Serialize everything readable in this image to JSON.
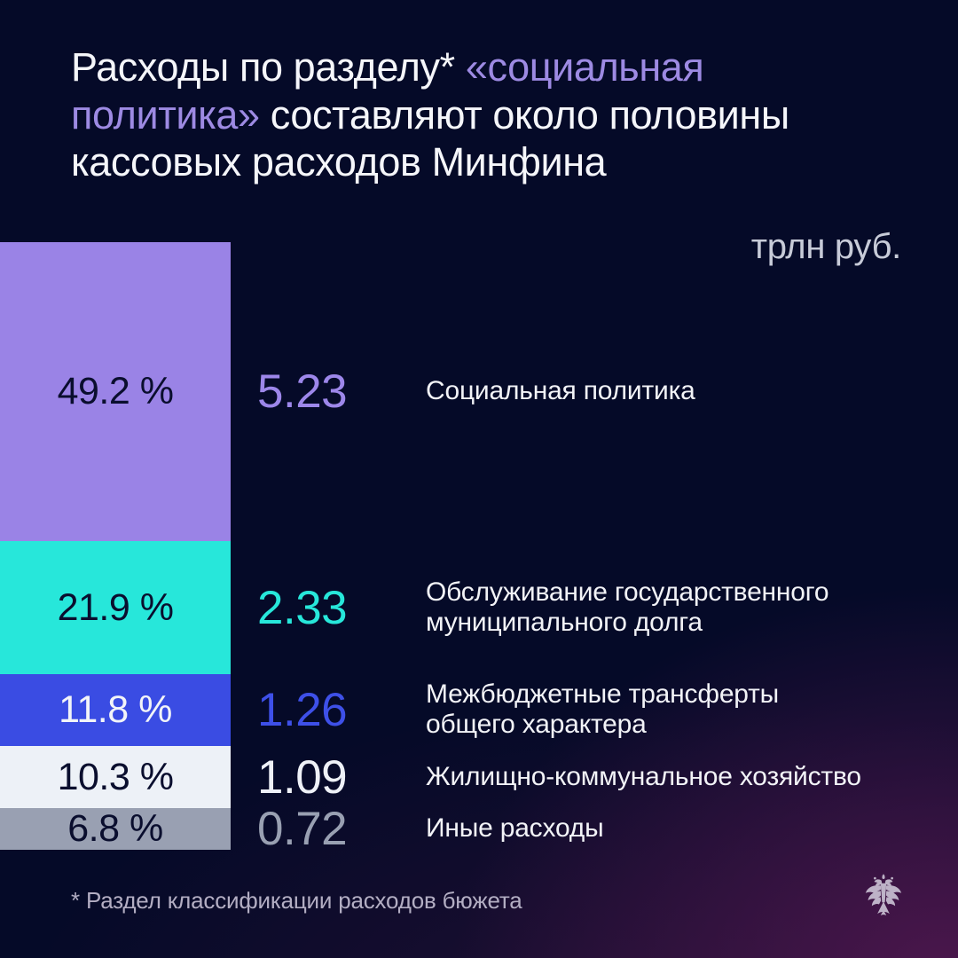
{
  "title": {
    "part1": "Расходы по разделу* ",
    "accent": "«социальная политика»",
    "part2": " составляют около половины кассовых расходов Минфина"
  },
  "unit_label": "трлн руб.",
  "footnote": "* Раздел классификации расходов бюжета",
  "logo": {
    "name": "minfin-double-headed-eagle",
    "color": "#d4cede"
  },
  "colors": {
    "background_top": "#050a28",
    "background_glow_bottom_right": "#3a1438",
    "title_text": "#f5f6fa",
    "title_accent": "#9d8ae3",
    "unit_text": "#c7cbd8",
    "footnote_text": "#b3aec3"
  },
  "chart_data": {
    "type": "bar",
    "subtype": "vertical-stacked-100-percent",
    "title": "Расходы по разделу «социальная политика» составляют около половины кассовых расходов Минфина",
    "unit": "трлн руб.",
    "legend_position": "right-of-bar",
    "grid": false,
    "items": [
      {
        "label": "Социальная политика",
        "percent": 49.2,
        "percent_label": "49.2 %",
        "value": "5.23",
        "color": "#9a83e6",
        "value_color": "#9d87ea",
        "percent_text_color": "#0a0e2e"
      },
      {
        "label": "Обслуживание государственного\nмуниципального долга",
        "percent": 21.9,
        "percent_label": "21.9 %",
        "value": "2.33",
        "color": "#27e7da",
        "value_color": "#27e7da",
        "percent_text_color": "#0a0e2e"
      },
      {
        "label": "Межбюджетные трансферты\nобщего характера",
        "percent": 11.8,
        "percent_label": "11.8 %",
        "value": "1.26",
        "color": "#3a4ce3",
        "value_color": "#3e50e8",
        "percent_text_color": "#f2f4f8"
      },
      {
        "label": "Жилищно-коммунальное хозяйство",
        "percent": 10.3,
        "percent_label": "10.3 %",
        "value": "1.09",
        "color": "#edf1f7",
        "value_color": "#eef1f7",
        "percent_text_color": "#0a0e2e"
      },
      {
        "label": "Иные расходы",
        "percent": 6.8,
        "percent_label": "6.8 %",
        "value": "0.72",
        "color": "#99a0b2",
        "value_color": "#99a0b2",
        "percent_text_color": "#0a0e2e"
      }
    ]
  }
}
